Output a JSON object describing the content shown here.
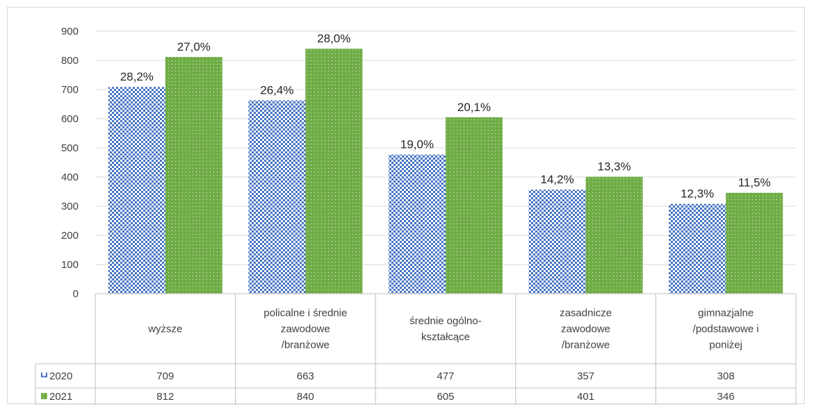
{
  "chart_data": {
    "type": "bar",
    "categories": [
      [
        "wyższe"
      ],
      [
        "policalne i średnie",
        "zawodowe",
        "/branżowe"
      ],
      [
        "średnie ogólno-",
        "kształcące"
      ],
      [
        "zasadnicze",
        "zawodowe",
        "/branżowe"
      ],
      [
        "gimnazjalne",
        "/podstawowe i",
        "poniżej"
      ]
    ],
    "series": [
      {
        "name": "2020",
        "values": [
          709,
          663,
          477,
          357,
          308
        ],
        "data_labels": [
          "28,2%",
          "26,4%",
          "19,0%",
          "14,2%",
          "12,3%"
        ],
        "table_values": [
          "709",
          "663",
          "477",
          "357",
          "308"
        ],
        "color": "#4472c4",
        "pattern": "checker"
      },
      {
        "name": "2021",
        "values": [
          812,
          840,
          605,
          401,
          346
        ],
        "data_labels": [
          "27,0%",
          "28,0%",
          "20,1%",
          "13,3%",
          "11,5%"
        ],
        "table_values": [
          "812",
          "840",
          "605",
          "401",
          "346"
        ],
        "color": "#70ad47",
        "pattern": "dots"
      }
    ],
    "ylim": [
      0,
      900
    ],
    "yticks": [
      "0",
      "100",
      "200",
      "300",
      "400",
      "500",
      "600",
      "700",
      "800",
      "900"
    ],
    "grid": true,
    "data_table": true
  }
}
